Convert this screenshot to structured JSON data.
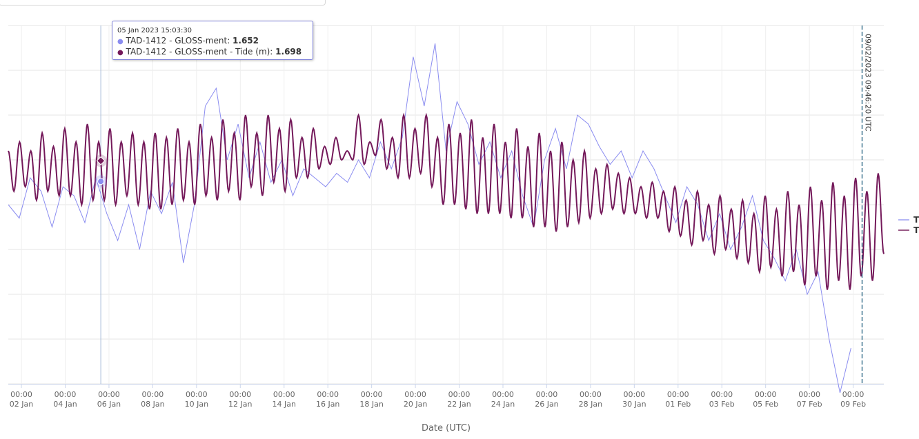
{
  "chart_data": {
    "type": "line",
    "xlabel": "Date (UTC)",
    "ylabel": "",
    "ylim": [
      1.2,
      2.0
    ],
    "y_grid_step": 0.1,
    "x_range_days_from_02_Jan": [
      -0.6,
      39.4
    ],
    "x_ticks": [
      {
        "time": "00:00",
        "date": "02 Jan"
      },
      {
        "time": "00:00",
        "date": "04 Jan"
      },
      {
        "time": "00:00",
        "date": "06 Jan"
      },
      {
        "time": "00:00",
        "date": "08 Jan"
      },
      {
        "time": "00:00",
        "date": "10 Jan"
      },
      {
        "time": "00:00",
        "date": "12 Jan"
      },
      {
        "time": "00:00",
        "date": "14 Jan"
      },
      {
        "time": "00:00",
        "date": "16 Jan"
      },
      {
        "time": "00:00",
        "date": "18 Jan"
      },
      {
        "time": "00:00",
        "date": "20 Jan"
      },
      {
        "time": "00:00",
        "date": "22 Jan"
      },
      {
        "time": "00:00",
        "date": "24 Jan"
      },
      {
        "time": "00:00",
        "date": "26 Jan"
      },
      {
        "time": "00:00",
        "date": "28 Jan"
      },
      {
        "time": "00:00",
        "date": "30 Jan"
      },
      {
        "time": "00:00",
        "date": "01 Feb"
      },
      {
        "time": "00:00",
        "date": "03 Feb"
      },
      {
        "time": "00:00",
        "date": "05 Feb"
      },
      {
        "time": "00:00",
        "date": "07 Feb"
      },
      {
        "time": "00:00",
        "date": "09 Feb"
      }
    ],
    "grid": true,
    "legend_position": "right",
    "series": [
      {
        "name": "TAD-1412 - GLOSS-ment",
        "legend_label": "T",
        "color": "#8a8cf0",
        "start_day": -0.6,
        "step_days": 0.5,
        "values": [
          1.6,
          1.57,
          1.66,
          1.63,
          1.55,
          1.64,
          1.62,
          1.56,
          1.66,
          1.58,
          1.52,
          1.6,
          1.5,
          1.63,
          1.58,
          1.65,
          1.47,
          1.6,
          1.82,
          1.86,
          1.7,
          1.78,
          1.66,
          1.74,
          1.65,
          1.7,
          1.62,
          1.68,
          1.66,
          1.64,
          1.67,
          1.65,
          1.7,
          1.66,
          1.74,
          1.68,
          1.75,
          1.93,
          1.82,
          1.96,
          1.72,
          1.83,
          1.78,
          1.69,
          1.74,
          1.66,
          1.72,
          1.62,
          1.55,
          1.7,
          1.77,
          1.68,
          1.8,
          1.78,
          1.73,
          1.69,
          1.72,
          1.66,
          1.72,
          1.68,
          1.62,
          1.56,
          1.64,
          1.6,
          1.52,
          1.58,
          1.5,
          1.55,
          1.62,
          1.52,
          1.48,
          1.43,
          1.5,
          1.4,
          1.45,
          1.3,
          1.18,
          1.28
        ]
      },
      {
        "name": "TAD-1412 - GLOSS-ment - Tide (m)",
        "legend_label": "T",
        "color": "#74195a",
        "start_day": -0.6,
        "end_day": 39.4,
        "values": [
          1.72,
          1.63,
          1.74,
          1.64,
          1.72,
          1.61,
          1.76,
          1.63,
          1.73,
          1.62,
          1.77,
          1.62,
          1.74,
          1.6,
          1.78,
          1.61,
          1.74,
          1.61,
          1.77,
          1.6,
          1.74,
          1.62,
          1.76,
          1.6,
          1.74,
          1.59,
          1.76,
          1.59,
          1.75,
          1.6,
          1.77,
          1.61,
          1.74,
          1.6,
          1.78,
          1.62,
          1.75,
          1.61,
          1.79,
          1.63,
          1.76,
          1.61,
          1.8,
          1.64,
          1.76,
          1.62,
          1.8,
          1.65,
          1.77,
          1.63,
          1.79,
          1.66,
          1.75,
          1.66,
          1.77,
          1.68,
          1.73,
          1.69,
          1.75,
          1.7,
          1.72,
          1.7,
          1.8,
          1.69,
          1.74,
          1.71,
          1.79,
          1.68,
          1.75,
          1.66,
          1.8,
          1.66,
          1.77,
          1.67,
          1.8,
          1.64,
          1.75,
          1.6,
          1.78,
          1.6,
          1.76,
          1.59,
          1.79,
          1.58,
          1.75,
          1.58,
          1.78,
          1.58,
          1.74,
          1.57,
          1.77,
          1.57,
          1.73,
          1.55,
          1.76,
          1.55,
          1.72,
          1.54,
          1.74,
          1.55,
          1.7,
          1.56,
          1.72,
          1.57,
          1.68,
          1.58,
          1.69,
          1.59,
          1.67,
          1.58,
          1.66,
          1.58,
          1.64,
          1.57,
          1.65,
          1.57,
          1.63,
          1.54,
          1.64,
          1.53,
          1.61,
          1.51,
          1.63,
          1.52,
          1.6,
          1.49,
          1.62,
          1.5,
          1.59,
          1.48,
          1.61,
          1.47,
          1.58,
          1.45,
          1.62,
          1.46,
          1.59,
          1.44,
          1.63,
          1.45,
          1.6,
          1.42,
          1.64,
          1.44,
          1.61,
          1.41,
          1.65,
          1.43,
          1.62,
          1.41,
          1.66,
          1.44,
          1.63,
          1.43,
          1.67,
          1.49
        ]
      }
    ],
    "plot_line": {
      "day": 38.407,
      "label": "09/02/2023 09:46:20 UTC",
      "color": "#1a5a7a"
    },
    "hover": {
      "day": 3.627,
      "measurement": 1.652,
      "tide": 1.698
    }
  },
  "tooltip": {
    "time": "05 Jan 2023 15:03:30",
    "rows": [
      {
        "label": "TAD-1412 - GLOSS-ment: ",
        "value": "1.652",
        "color": "#8a8cf0"
      },
      {
        "label": "TAD-1412 - GLOSS-ment - Tide (m): ",
        "value": "1.698",
        "color": "#74195a"
      }
    ]
  }
}
